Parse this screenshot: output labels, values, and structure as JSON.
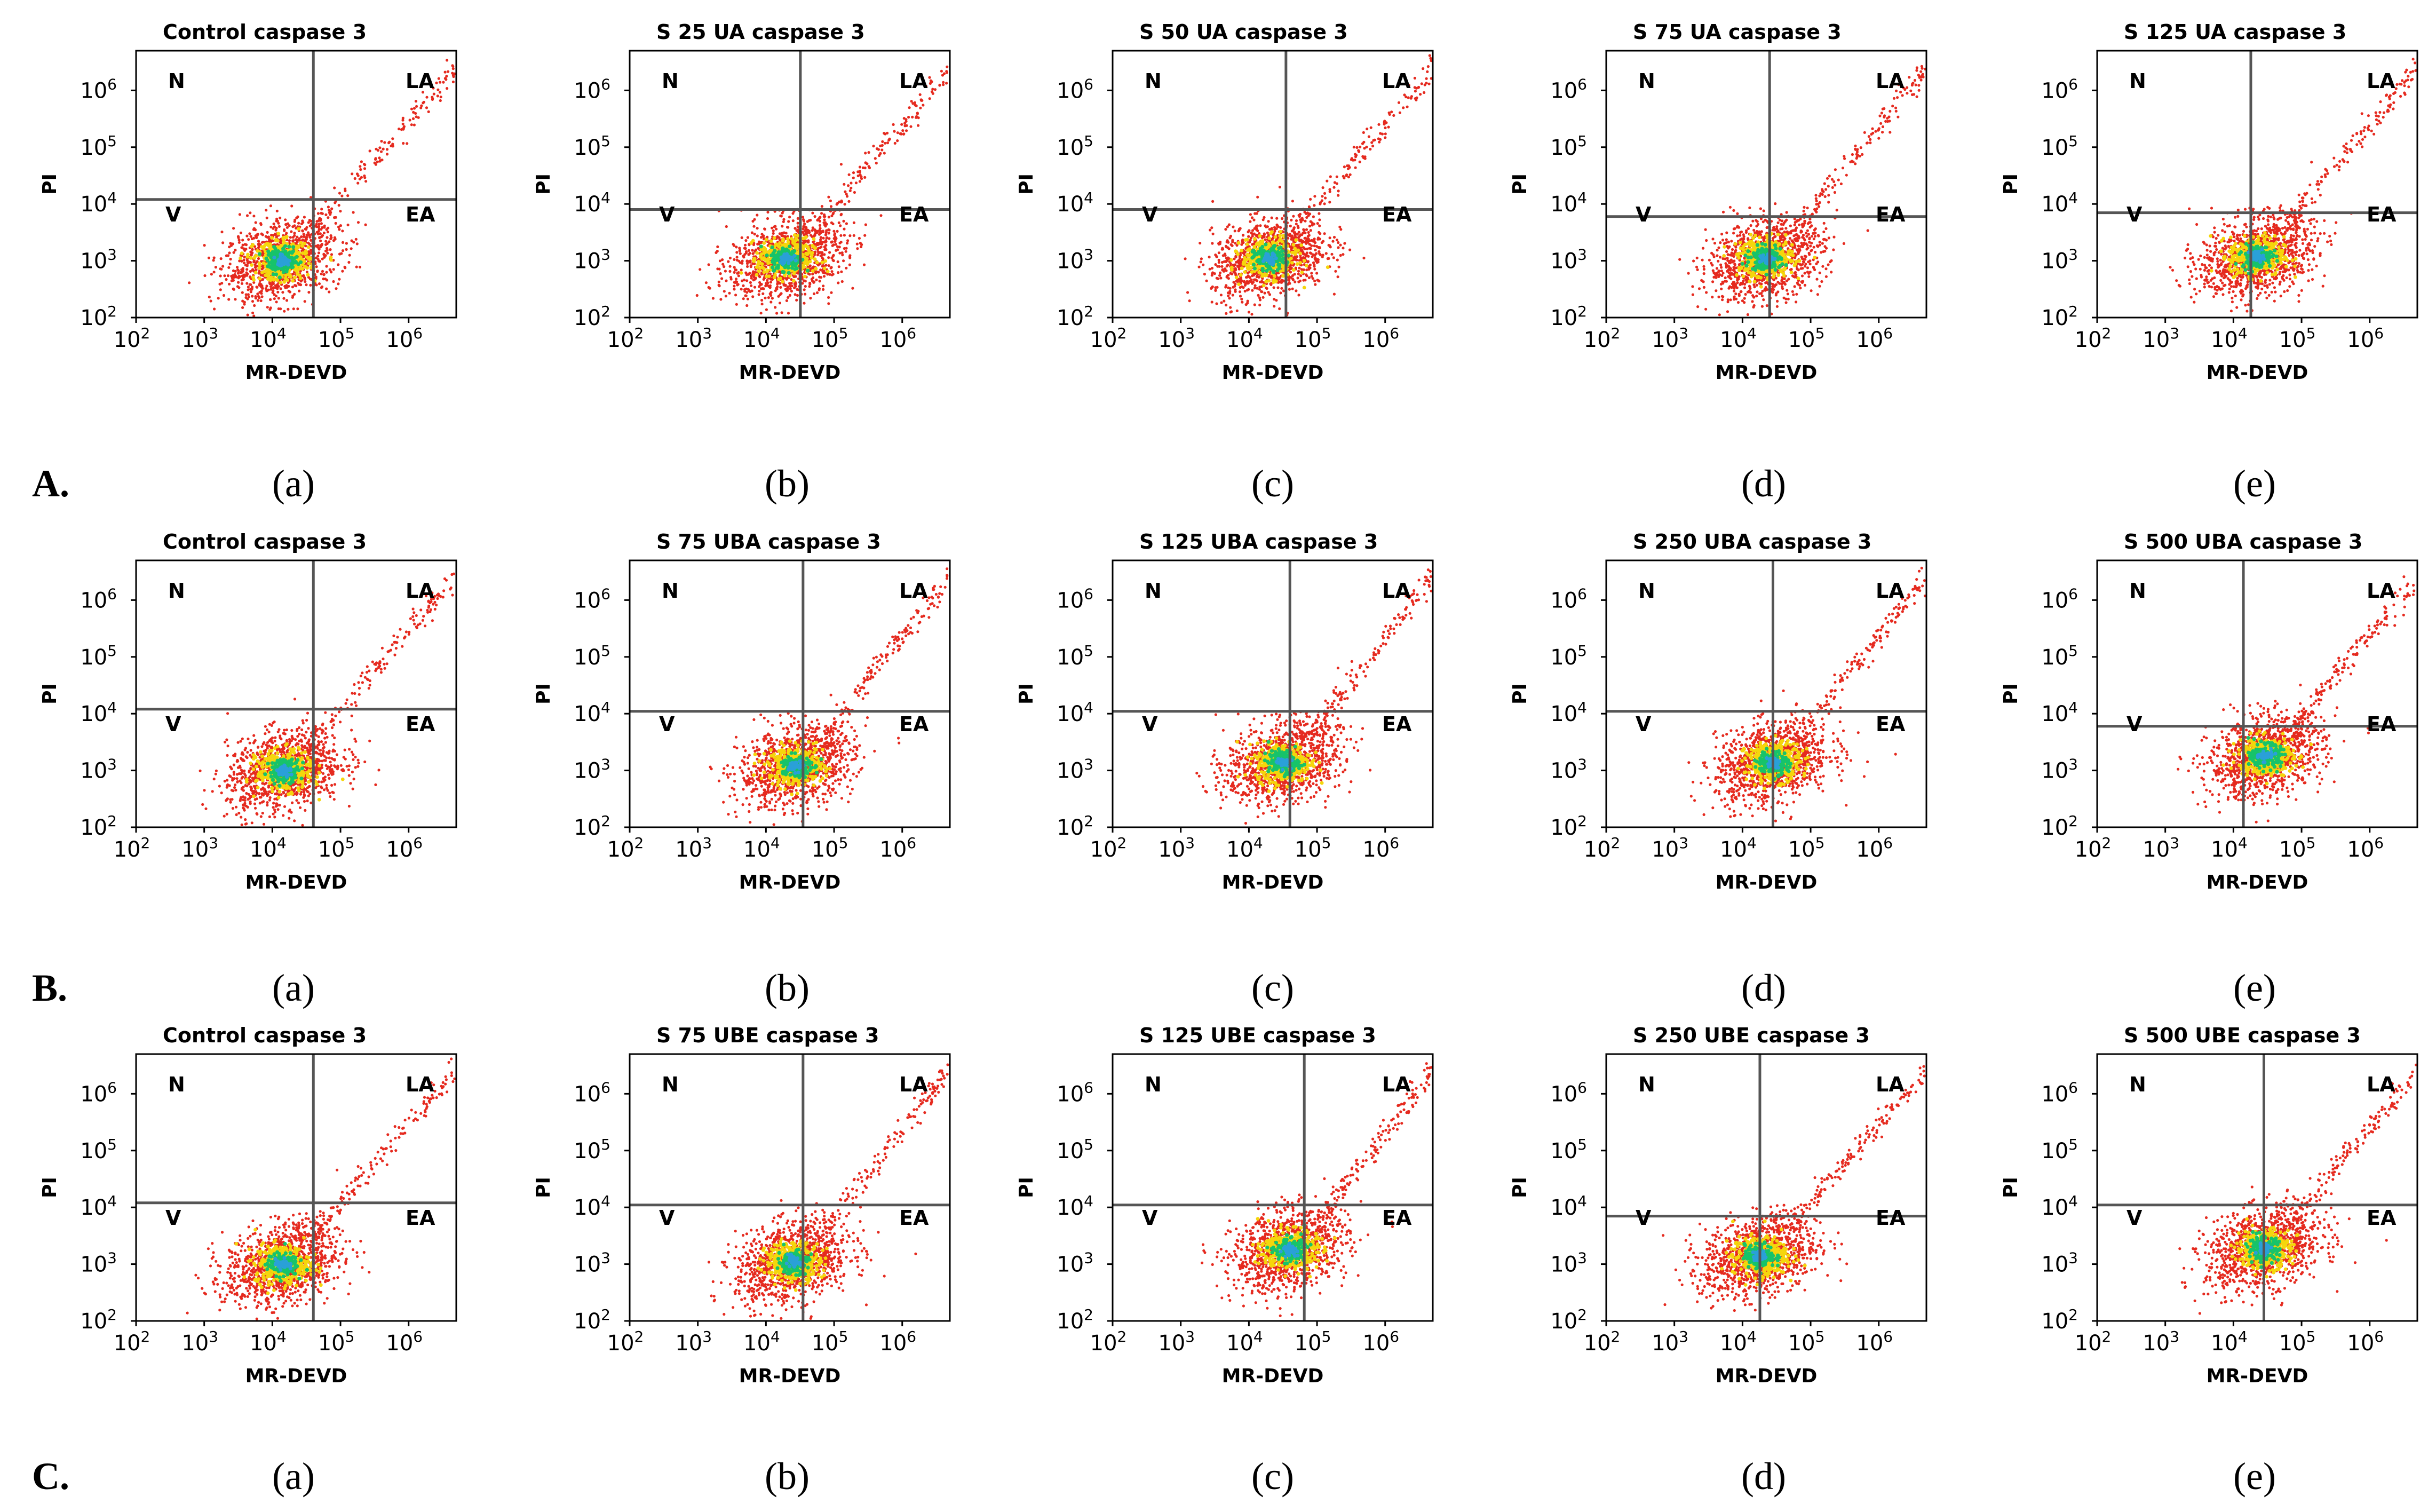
{
  "rows": [
    {
      "label": "A.",
      "panels": [
        {
          "letter": "(a)",
          "chart_data": {
            "type": "scatter",
            "title": "Control caspase 3",
            "xlabel": "MR-DEVD",
            "ylabel": "PI",
            "x_scale": "log",
            "y_scale": "log",
            "xlim": [
              100,
              5000000
            ],
            "ylim": [
              100,
              5000000
            ],
            "quadrants": [
              "N",
              "LA",
              "V",
              "EA"
            ],
            "gate": {
              "x": 40000,
              "y": 12000
            },
            "population_center": {
              "x": 14000,
              "y": 1000
            }
          }
        },
        {
          "letter": "(b)",
          "chart_data": {
            "type": "scatter",
            "title": "S 25 UA caspase 3",
            "xlabel": "MR-DEVD",
            "ylabel": "PI",
            "x_scale": "log",
            "y_scale": "log",
            "xlim": [
              100,
              5000000
            ],
            "ylim": [
              100,
              5000000
            ],
            "quadrants": [
              "N",
              "LA",
              "V",
              "EA"
            ],
            "gate": {
              "x": 32000,
              "y": 8000
            },
            "population_center": {
              "x": 20000,
              "y": 1100
            }
          }
        },
        {
          "letter": "(c)",
          "chart_data": {
            "type": "scatter",
            "title": "S 50 UA caspase 3",
            "xlabel": "MR-DEVD",
            "ylabel": "PI",
            "x_scale": "log",
            "y_scale": "log",
            "xlim": [
              100,
              5000000
            ],
            "ylim": [
              100,
              5000000
            ],
            "quadrants": [
              "N",
              "LA",
              "V",
              "EA"
            ],
            "gate": {
              "x": 35000,
              "y": 8000
            },
            "population_center": {
              "x": 20000,
              "y": 1100
            }
          }
        },
        {
          "letter": "(d)",
          "chart_data": {
            "type": "scatter",
            "title": "S 75 UA caspase 3",
            "xlabel": "MR-DEVD",
            "ylabel": "PI",
            "x_scale": "log",
            "y_scale": "log",
            "xlim": [
              100,
              5000000
            ],
            "ylim": [
              100,
              5000000
            ],
            "quadrants": [
              "N",
              "LA",
              "V",
              "EA"
            ],
            "gate": {
              "x": 25000,
              "y": 6000
            },
            "population_center": {
              "x": 22000,
              "y": 1100
            }
          }
        },
        {
          "letter": "(e)",
          "chart_data": {
            "type": "scatter",
            "title": "S 125 UA caspase 3",
            "xlabel": "MR-DEVD",
            "ylabel": "PI",
            "x_scale": "log",
            "y_scale": "log",
            "xlim": [
              100,
              5000000
            ],
            "ylim": [
              100,
              5000000
            ],
            "quadrants": [
              "N",
              "LA",
              "V",
              "EA"
            ],
            "gate": {
              "x": 18000,
              "y": 7000
            },
            "population_center": {
              "x": 22000,
              "y": 1200
            }
          }
        }
      ]
    },
    {
      "label": "B.",
      "panels": [
        {
          "letter": "(a)",
          "chart_data": {
            "type": "scatter",
            "title": "Control caspase 3",
            "xlabel": "MR-DEVD",
            "ylabel": "PI",
            "x_scale": "log",
            "y_scale": "log",
            "xlim": [
              100,
              5000000
            ],
            "ylim": [
              100,
              5000000
            ],
            "quadrants": [
              "N",
              "LA",
              "V",
              "EA"
            ],
            "gate": {
              "x": 40000,
              "y": 12000
            },
            "population_center": {
              "x": 15000,
              "y": 1000
            }
          }
        },
        {
          "letter": "(b)",
          "chart_data": {
            "type": "scatter",
            "title": "S 75 UBA caspase 3",
            "xlabel": "MR-DEVD",
            "ylabel": "PI",
            "x_scale": "log",
            "y_scale": "log",
            "xlim": [
              100,
              5000000
            ],
            "ylim": [
              100,
              5000000
            ],
            "quadrants": [
              "N",
              "LA",
              "V",
              "EA"
            ],
            "gate": {
              "x": 35000,
              "y": 11000
            },
            "population_center": {
              "x": 28000,
              "y": 1200
            }
          }
        },
        {
          "letter": "(c)",
          "chart_data": {
            "type": "scatter",
            "title": "S 125 UBA caspase 3",
            "xlabel": "MR-DEVD",
            "ylabel": "PI",
            "x_scale": "log",
            "y_scale": "log",
            "xlim": [
              100,
              5000000
            ],
            "ylim": [
              100,
              5000000
            ],
            "quadrants": [
              "N",
              "LA",
              "V",
              "EA"
            ],
            "gate": {
              "x": 40000,
              "y": 11000
            },
            "population_center": {
              "x": 32000,
              "y": 1400
            }
          }
        },
        {
          "letter": "(d)",
          "chart_data": {
            "type": "scatter",
            "title": "S 250 UBA caspase 3",
            "xlabel": "MR-DEVD",
            "ylabel": "PI",
            "x_scale": "log",
            "y_scale": "log",
            "xlim": [
              100,
              5000000
            ],
            "ylim": [
              100,
              5000000
            ],
            "quadrants": [
              "N",
              "LA",
              "V",
              "EA"
            ],
            "gate": {
              "x": 28000,
              "y": 11000
            },
            "population_center": {
              "x": 28000,
              "y": 1400
            }
          }
        },
        {
          "letter": "(e)",
          "chart_data": {
            "type": "scatter",
            "title": "S 500 UBA caspase 3",
            "xlabel": "MR-DEVD",
            "ylabel": "PI",
            "x_scale": "log",
            "y_scale": "log",
            "xlim": [
              100,
              5000000
            ],
            "ylim": [
              100,
              5000000
            ],
            "quadrants": [
              "N",
              "LA",
              "V",
              "EA"
            ],
            "gate": {
              "x": 14000,
              "y": 6000
            },
            "population_center": {
              "x": 30000,
              "y": 1800
            }
          }
        }
      ]
    },
    {
      "label": "C.",
      "panels": [
        {
          "letter": "(a)",
          "chart_data": {
            "type": "scatter",
            "title": "Control caspase 3",
            "xlabel": "MR-DEVD",
            "ylabel": "PI",
            "x_scale": "log",
            "y_scale": "log",
            "xlim": [
              100,
              5000000
            ],
            "ylim": [
              100,
              5000000
            ],
            "quadrants": [
              "N",
              "LA",
              "V",
              "EA"
            ],
            "gate": {
              "x": 40000,
              "y": 12000
            },
            "population_center": {
              "x": 14000,
              "y": 1000
            }
          }
        },
        {
          "letter": "(b)",
          "chart_data": {
            "type": "scatter",
            "title": "S 75 UBE caspase 3",
            "xlabel": "MR-DEVD",
            "ylabel": "PI",
            "x_scale": "log",
            "y_scale": "log",
            "xlim": [
              100,
              5000000
            ],
            "ylim": [
              100,
              5000000
            ],
            "quadrants": [
              "N",
              "LA",
              "V",
              "EA"
            ],
            "gate": {
              "x": 35000,
              "y": 11000
            },
            "population_center": {
              "x": 25000,
              "y": 1100
            }
          }
        },
        {
          "letter": "(c)",
          "chart_data": {
            "type": "scatter",
            "title": "S 125 UBE caspase 3",
            "xlabel": "MR-DEVD",
            "ylabel": "PI",
            "x_scale": "log",
            "y_scale": "log",
            "xlim": [
              100,
              5000000
            ],
            "ylim": [
              100,
              5000000
            ],
            "quadrants": [
              "N",
              "LA",
              "V",
              "EA"
            ],
            "gate": {
              "x": 65000,
              "y": 11000
            },
            "population_center": {
              "x": 40000,
              "y": 1800
            }
          }
        },
        {
          "letter": "(d)",
          "chart_data": {
            "type": "scatter",
            "title": "S 250 UBE caspase 3",
            "xlabel": "MR-DEVD",
            "ylabel": "PI",
            "x_scale": "log",
            "y_scale": "log",
            "xlim": [
              100,
              5000000
            ],
            "ylim": [
              100,
              5000000
            ],
            "quadrants": [
              "N",
              "LA",
              "V",
              "EA"
            ],
            "gate": {
              "x": 18000,
              "y": 7000
            },
            "population_center": {
              "x": 18000,
              "y": 1400
            }
          }
        },
        {
          "letter": "(e)",
          "chart_data": {
            "type": "scatter",
            "title": "S 500 UBE caspase 3",
            "xlabel": "MR-DEVD",
            "ylabel": "PI",
            "x_scale": "log",
            "y_scale": "log",
            "xlim": [
              100,
              5000000
            ],
            "ylim": [
              100,
              5000000
            ],
            "quadrants": [
              "N",
              "LA",
              "V",
              "EA"
            ],
            "gate": {
              "x": 28000,
              "y": 11000
            },
            "population_center": {
              "x": 28000,
              "y": 1900
            }
          }
        }
      ]
    }
  ],
  "tick_labels": {
    "x": [
      {
        "base": "10",
        "exp": "2"
      },
      {
        "base": "10",
        "exp": "3"
      },
      {
        "base": "10",
        "exp": "4"
      },
      {
        "base": "10",
        "exp": "5"
      },
      {
        "base": "10",
        "exp": "6"
      }
    ],
    "y": [
      {
        "base": "10",
        "exp": "2"
      },
      {
        "base": "10",
        "exp": "3"
      },
      {
        "base": "10",
        "exp": "4"
      },
      {
        "base": "10",
        "exp": "5"
      },
      {
        "base": "10",
        "exp": "6"
      }
    ]
  },
  "colors": {
    "low_density": "#e52a1f",
    "mid_density": "#f5d60c",
    "high_density": "#17c36a",
    "core": "#2aa0d8",
    "gate_line": "#555555"
  }
}
